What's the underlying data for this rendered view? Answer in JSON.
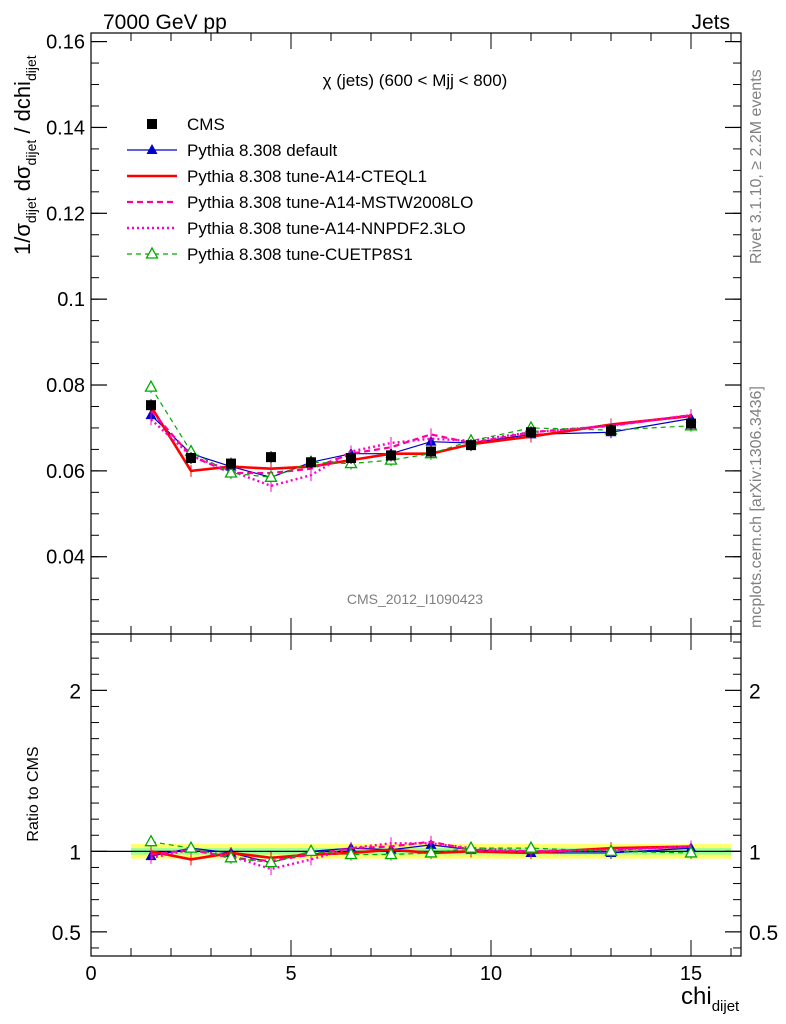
{
  "header": {
    "left": "7000 GeV pp",
    "right": "Jets"
  },
  "side_labels": {
    "rivet": "Rivet 3.1.10, ≥ 2.2M events",
    "mcplots": "mcplots.cern.ch [arXiv:1306.3436]"
  },
  "chart_data": [
    {
      "type": "line",
      "title": "χ (jets) (600 < Mjj <  800)",
      "watermark": "CMS_2012_I1090423",
      "ylabel": {
        "base": "1/σ",
        "sub1": "dijet",
        "mid": " dσ",
        "sub2": "dijet",
        "tail": " / dchi",
        "sub3": "dijet"
      },
      "xlim": [
        0,
        16.25
      ],
      "ylim": [
        0.022,
        0.162
      ],
      "yticks": [
        0.04,
        0.06,
        0.08,
        0.1,
        0.12,
        0.14,
        0.16
      ],
      "ytick_labels": [
        "0.04",
        "0.06",
        "0.08",
        "0.1",
        "0.12",
        "0.14",
        "0.16"
      ],
      "x": [
        1.5,
        2.5,
        3.5,
        4.5,
        5.5,
        6.5,
        7.5,
        8.5,
        9.5,
        11,
        13,
        15
      ],
      "series": [
        {
          "name": "CMS",
          "color": "#000000",
          "style": "marker",
          "values": [
            0.0753,
            0.063,
            0.0617,
            0.0632,
            0.062,
            0.063,
            0.0636,
            0.0645,
            0.066,
            0.069,
            0.0695,
            0.071
          ]
        },
        {
          "name": "Pythia 8.308 default",
          "color": "#0000cc",
          "style": "solid-thin-triangle",
          "values": [
            0.073,
            0.064,
            0.061,
            0.0585,
            0.062,
            0.064,
            0.064,
            0.0668,
            0.0665,
            0.0685,
            0.069,
            0.0722
          ]
        },
        {
          "name": "Pythia 8.308 tune-A14-CTEQL1",
          "color": "#ff0000",
          "style": "solid-thick",
          "values": [
            0.075,
            0.06,
            0.061,
            0.0605,
            0.061,
            0.0625,
            0.064,
            0.064,
            0.0662,
            0.068,
            0.0708,
            0.0728
          ]
        },
        {
          "name": "Pythia 8.308 tune-A14-MSTW2008LO",
          "color": "#ff0099",
          "style": "dashed",
          "values": [
            0.074,
            0.0635,
            0.0595,
            0.0595,
            0.0605,
            0.064,
            0.0655,
            0.0685,
            0.0665,
            0.069,
            0.0705,
            0.073
          ]
        },
        {
          "name": "Pythia 8.308 tune-A14-NNPDF2.3LO",
          "color": "#ff00cc",
          "style": "dotted",
          "values": [
            0.072,
            0.0635,
            0.06,
            0.0565,
            0.059,
            0.0645,
            0.0665,
            0.0675,
            0.067,
            0.069,
            0.0705,
            0.073
          ]
        },
        {
          "name": "Pythia 8.308 tune-CUETP8S1",
          "color": "#00aa00",
          "style": "dashed-open-triangle",
          "values": [
            0.0795,
            0.0645,
            0.0595,
            0.0585,
            0.062,
            0.0617,
            0.0625,
            0.064,
            0.067,
            0.07,
            0.0695,
            0.0705
          ]
        }
      ]
    },
    {
      "type": "line",
      "ylabel": "Ratio to CMS",
      "xlabel": {
        "base": "chi",
        "sub": "dijet"
      },
      "xlim": [
        0,
        16.25
      ],
      "ylim": [
        0.35,
        2.35
      ],
      "xticks": [
        0,
        5,
        10,
        15
      ],
      "xtick_labels": [
        "0",
        "5",
        "10",
        "15"
      ],
      "yticks": [
        0.5,
        1,
        2
      ],
      "ytick_labels": [
        "0.5",
        "1",
        "2"
      ],
      "band_inner_color": "#99ff99",
      "band_outer_color": "#ffff66",
      "band_inner_halfwidth": 0.02,
      "band_outer_halfwidth": 0.045,
      "band_x_range": [
        1,
        16
      ],
      "x": [
        1.5,
        2.5,
        3.5,
        4.5,
        5.5,
        6.5,
        7.5,
        8.5,
        9.5,
        11,
        13,
        15
      ],
      "series": [
        {
          "name": "Pythia 8.308 default",
          "values": [
            0.97,
            1.02,
            0.99,
            0.93,
            1.0,
            1.02,
            1.01,
            1.04,
            1.01,
            0.99,
            0.99,
            1.02
          ]
        },
        {
          "name": "Pythia 8.308 tune-A14-CTEQL1",
          "values": [
            1.0,
            0.95,
            0.99,
            0.96,
            0.98,
            0.99,
            1.01,
            0.99,
            1.0,
            0.99,
            1.02,
            1.03
          ]
        },
        {
          "name": "Pythia 8.308 tune-A14-MSTW2008LO",
          "values": [
            0.98,
            1.01,
            0.96,
            0.94,
            0.98,
            1.02,
            1.03,
            1.06,
            1.01,
            1.0,
            1.01,
            1.03
          ]
        },
        {
          "name": "Pythia 8.308 tune-A14-NNPDF2.3LO",
          "values": [
            0.96,
            1.01,
            0.97,
            0.89,
            0.95,
            1.02,
            1.05,
            1.05,
            1.02,
            1.0,
            1.01,
            1.03
          ]
        },
        {
          "name": "Pythia 8.308 tune-CUETP8S1",
          "values": [
            1.06,
            1.02,
            0.96,
            0.93,
            1.0,
            0.98,
            0.98,
            0.99,
            1.02,
            1.02,
            1.0,
            0.99
          ]
        }
      ]
    }
  ]
}
